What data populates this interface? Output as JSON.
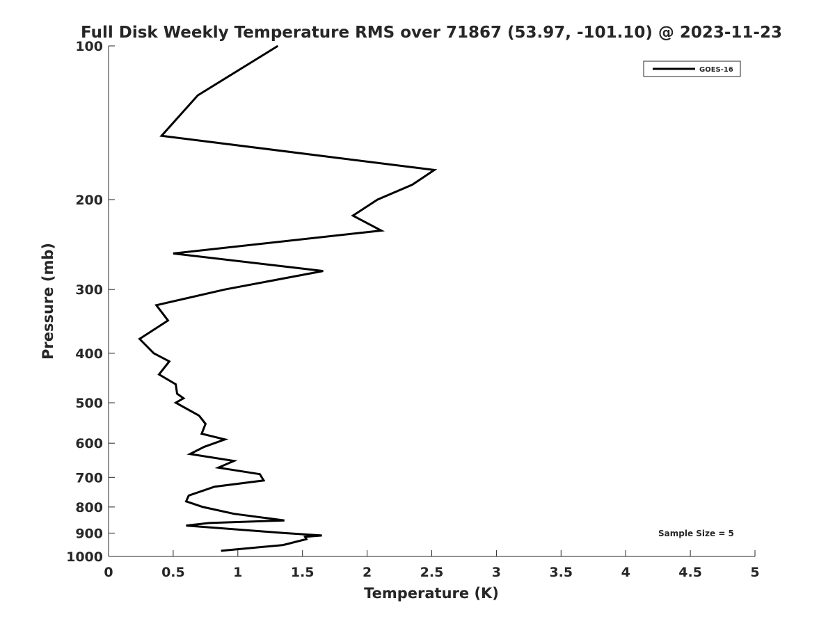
{
  "chart_data": {
    "type": "line",
    "title": "Full Disk Weekly Temperature RMS over 71867 (53.97, -101.10) @ 2023-11-23",
    "xlabel": "Temperature (K)",
    "ylabel": "Pressure (mb)",
    "xlim": [
      0,
      5
    ],
    "ylim": [
      100,
      1000
    ],
    "y_scale": "log",
    "y_reversed": true,
    "grid": false,
    "legend_position": "top-right",
    "x_ticks": [
      "0",
      "0.5",
      "1",
      "1.5",
      "2",
      "2.5",
      "3",
      "3.5",
      "4",
      "4.5",
      "5"
    ],
    "y_ticks": [
      "100",
      "200",
      "300",
      "400",
      "500",
      "600",
      "700",
      "800",
      "900",
      "1000"
    ],
    "annotation": "Sample Size = 5",
    "series": [
      {
        "name": "GOES-16",
        "color": "#000000",
        "points": [
          [
            1.31,
            100
          ],
          [
            0.69,
            125
          ],
          [
            0.41,
            150
          ],
          [
            2.52,
            175
          ],
          [
            2.35,
            187
          ],
          [
            2.08,
            200
          ],
          [
            1.89,
            215
          ],
          [
            2.11,
            230
          ],
          [
            0.5,
            255
          ],
          [
            1.66,
            276
          ],
          [
            0.9,
            300
          ],
          [
            0.37,
            322
          ],
          [
            0.46,
            345
          ],
          [
            0.24,
            375
          ],
          [
            0.35,
            400
          ],
          [
            0.47,
            415
          ],
          [
            0.39,
            440
          ],
          [
            0.52,
            460
          ],
          [
            0.53,
            480
          ],
          [
            0.58,
            490
          ],
          [
            0.52,
            500
          ],
          [
            0.7,
            530
          ],
          [
            0.75,
            550
          ],
          [
            0.72,
            575
          ],
          [
            0.9,
            590
          ],
          [
            0.74,
            610
          ],
          [
            0.63,
            630
          ],
          [
            0.97,
            650
          ],
          [
            0.85,
            670
          ],
          [
            1.17,
            690
          ],
          [
            1.2,
            710
          ],
          [
            0.82,
            730
          ],
          [
            0.62,
            760
          ],
          [
            0.6,
            780
          ],
          [
            0.73,
            800
          ],
          [
            0.97,
            825
          ],
          [
            1.36,
            850
          ],
          [
            0.78,
            860
          ],
          [
            0.6,
            870
          ],
          [
            1.36,
            900
          ],
          [
            1.65,
            910
          ],
          [
            1.52,
            915
          ],
          [
            1.53,
            925
          ],
          [
            1.35,
            950
          ],
          [
            0.87,
            975
          ]
        ]
      }
    ]
  }
}
